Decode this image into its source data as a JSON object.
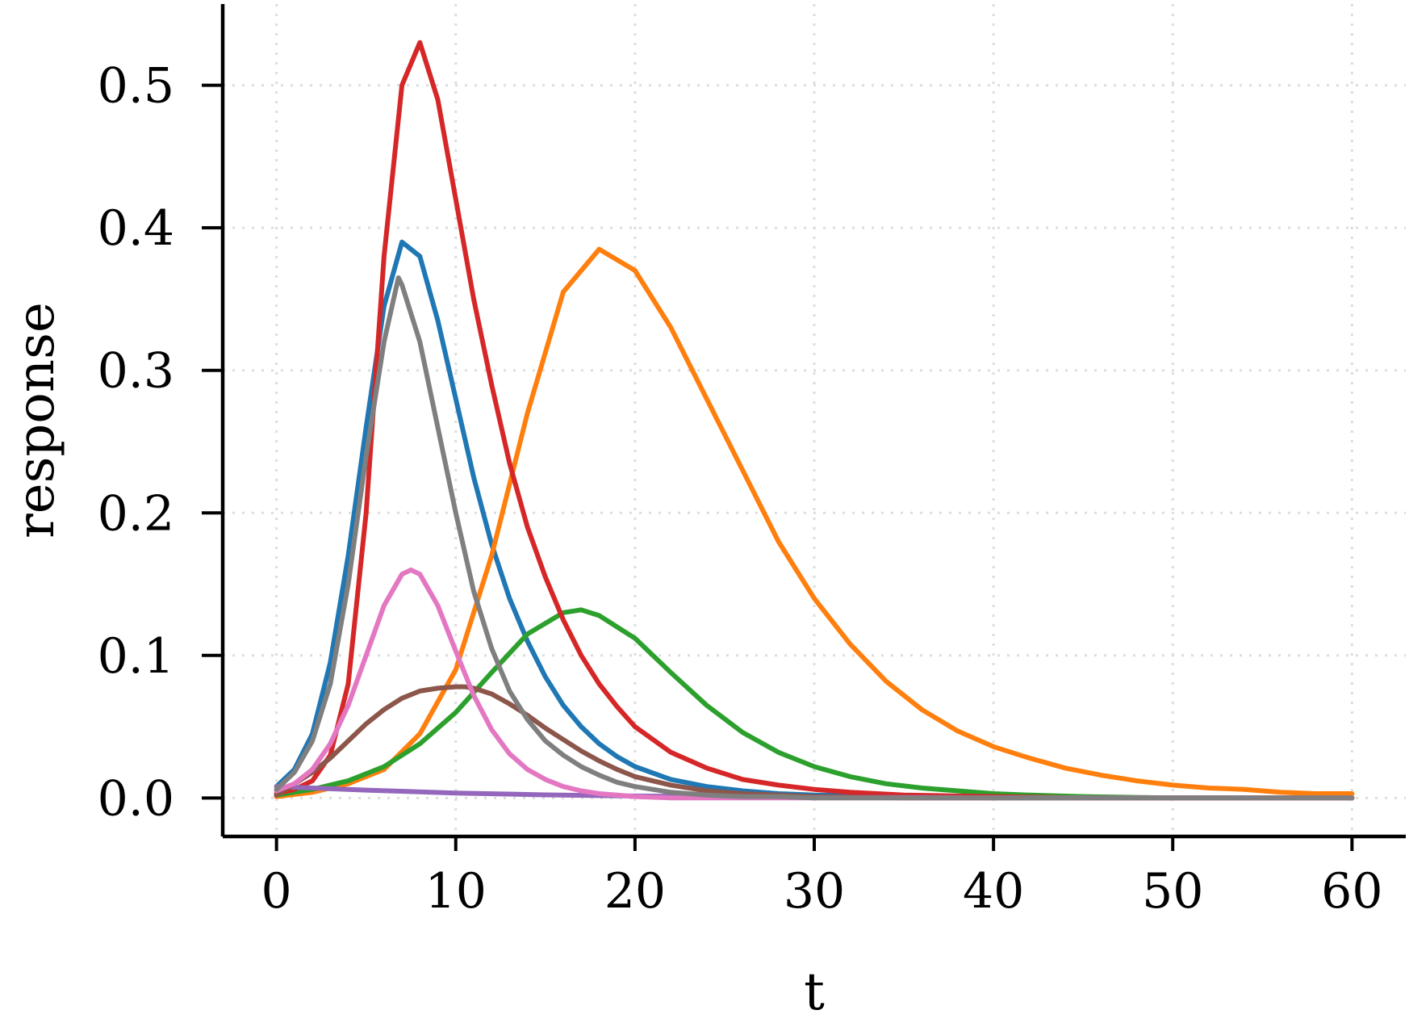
{
  "chart_data": {
    "type": "line",
    "title": "",
    "xlabel": "t",
    "ylabel": "response",
    "xlim": [
      -3,
      63
    ],
    "ylim": [
      -0.027,
      0.557
    ],
    "x_ticks": [
      0,
      10,
      20,
      30,
      40,
      50,
      60
    ],
    "x_tick_labels": [
      "0",
      "10",
      "20",
      "30",
      "40",
      "50",
      "60"
    ],
    "y_ticks": [
      0.0,
      0.1,
      0.2,
      0.3,
      0.4,
      0.5
    ],
    "y_tick_labels": [
      "0.0",
      "0.1",
      "0.2",
      "0.3",
      "0.4",
      "0.5"
    ],
    "grid": true,
    "grid_style": "dotted",
    "legend": "none",
    "series": [
      {
        "color": "#1f77b4",
        "x": [
          0,
          1,
          2,
          3,
          4,
          5,
          6,
          7,
          8,
          9,
          10,
          11,
          12,
          13,
          14,
          15,
          16,
          17,
          18,
          19,
          20,
          22,
          24,
          26,
          28,
          30,
          35,
          40,
          45,
          50,
          55,
          60
        ],
        "y": [
          0.008,
          0.02,
          0.045,
          0.095,
          0.17,
          0.26,
          0.345,
          0.39,
          0.38,
          0.335,
          0.28,
          0.225,
          0.178,
          0.14,
          0.11,
          0.085,
          0.065,
          0.05,
          0.038,
          0.029,
          0.022,
          0.013,
          0.008,
          0.005,
          0.003,
          0.002,
          0.001,
          0.0,
          0.0,
          0.0,
          0.0,
          0.0
        ]
      },
      {
        "color": "#ff7f0e",
        "x": [
          0,
          2,
          4,
          6,
          8,
          10,
          12,
          14,
          16,
          18,
          20,
          22,
          24,
          26,
          28,
          30,
          32,
          34,
          36,
          38,
          40,
          42,
          44,
          46,
          48,
          50,
          52,
          54,
          56,
          58,
          60
        ],
        "y": [
          0.001,
          0.004,
          0.01,
          0.02,
          0.045,
          0.09,
          0.17,
          0.27,
          0.355,
          0.385,
          0.37,
          0.33,
          0.28,
          0.23,
          0.18,
          0.14,
          0.108,
          0.082,
          0.062,
          0.047,
          0.036,
          0.028,
          0.021,
          0.016,
          0.012,
          0.009,
          0.007,
          0.006,
          0.004,
          0.003,
          0.003
        ]
      },
      {
        "color": "#2ca02c",
        "x": [
          0,
          2,
          4,
          6,
          8,
          10,
          12,
          14,
          16,
          17,
          18,
          20,
          22,
          24,
          26,
          28,
          30,
          32,
          34,
          36,
          38,
          40,
          42,
          45,
          50,
          55,
          60
        ],
        "y": [
          0.002,
          0.006,
          0.012,
          0.022,
          0.038,
          0.06,
          0.088,
          0.115,
          0.13,
          0.132,
          0.128,
          0.112,
          0.088,
          0.065,
          0.046,
          0.032,
          0.022,
          0.015,
          0.01,
          0.007,
          0.005,
          0.003,
          0.002,
          0.001,
          0.0,
          0.0,
          0.0
        ]
      },
      {
        "color": "#d62728",
        "x": [
          0,
          1,
          2,
          3,
          4,
          5,
          6,
          7,
          8,
          9,
          10,
          11,
          12,
          13,
          14,
          15,
          16,
          17,
          18,
          19,
          20,
          22,
          24,
          26,
          28,
          30,
          32,
          35,
          40,
          45,
          50,
          55,
          60
        ],
        "y": [
          0.003,
          0.006,
          0.012,
          0.03,
          0.08,
          0.2,
          0.38,
          0.5,
          0.53,
          0.49,
          0.42,
          0.35,
          0.29,
          0.235,
          0.19,
          0.155,
          0.125,
          0.1,
          0.08,
          0.064,
          0.05,
          0.032,
          0.021,
          0.013,
          0.009,
          0.006,
          0.004,
          0.002,
          0.001,
          0.0,
          0.0,
          0.0,
          0.0
        ]
      },
      {
        "color": "#9467bd",
        "x": [
          0,
          1,
          2,
          5,
          10,
          15,
          20,
          25,
          30,
          40,
          50,
          60
        ],
        "y": [
          0.008,
          0.0075,
          0.007,
          0.0055,
          0.0035,
          0.0022,
          0.0014,
          0.0009,
          0.0005,
          0.0002,
          0.0001,
          0.0
        ]
      },
      {
        "color": "#8c564b",
        "x": [
          0,
          1,
          2,
          3,
          4,
          5,
          6,
          7,
          8,
          9,
          10,
          10.5,
          11,
          12,
          13,
          14,
          15,
          16,
          17,
          18,
          19,
          20,
          22,
          24,
          26,
          28,
          30,
          35,
          40,
          45,
          50,
          55,
          60
        ],
        "y": [
          0.002,
          0.01,
          0.018,
          0.028,
          0.04,
          0.052,
          0.062,
          0.07,
          0.075,
          0.077,
          0.078,
          0.078,
          0.077,
          0.073,
          0.066,
          0.058,
          0.049,
          0.041,
          0.033,
          0.026,
          0.02,
          0.015,
          0.009,
          0.005,
          0.003,
          0.002,
          0.001,
          0.0,
          0.0,
          0.0,
          0.0,
          0.0,
          0.0
        ]
      },
      {
        "color": "#e377c2",
        "x": [
          0,
          1,
          2,
          3,
          4,
          5,
          6,
          7,
          7.5,
          8,
          9,
          10,
          11,
          12,
          13,
          14,
          15,
          16,
          17,
          18,
          19,
          20,
          22,
          24,
          26,
          28,
          30,
          35,
          40,
          50,
          60
        ],
        "y": [
          0.005,
          0.01,
          0.02,
          0.038,
          0.065,
          0.1,
          0.135,
          0.157,
          0.16,
          0.157,
          0.135,
          0.103,
          0.072,
          0.048,
          0.031,
          0.02,
          0.013,
          0.008,
          0.005,
          0.003,
          0.002,
          0.001,
          0.0,
          0.0,
          0.0,
          0.0,
          0.0,
          0.0,
          0.0,
          0.0,
          0.0
        ]
      },
      {
        "color": "#7f7f7f",
        "x": [
          0,
          1,
          2,
          3,
          4,
          5,
          6,
          6.8,
          7,
          8,
          9,
          10,
          11,
          12,
          13,
          14,
          15,
          16,
          17,
          18,
          19,
          20,
          22,
          24,
          26,
          28,
          30,
          35,
          40,
          45,
          50,
          55,
          60
        ],
        "y": [
          0.006,
          0.018,
          0.04,
          0.08,
          0.15,
          0.24,
          0.32,
          0.365,
          0.36,
          0.32,
          0.26,
          0.2,
          0.145,
          0.105,
          0.075,
          0.055,
          0.04,
          0.03,
          0.022,
          0.016,
          0.011,
          0.008,
          0.004,
          0.002,
          0.001,
          0.001,
          0.0,
          0.0,
          0.0,
          0.0,
          0.0,
          0.0,
          0.0
        ]
      }
    ]
  }
}
